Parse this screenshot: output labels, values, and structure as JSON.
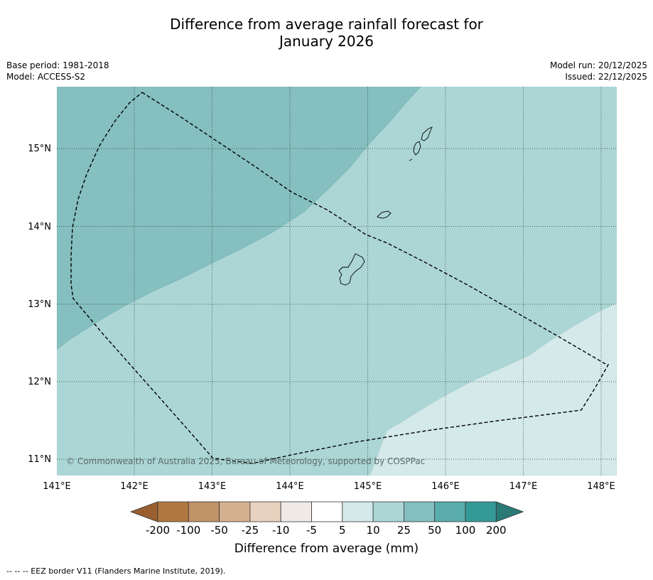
{
  "title": {
    "line1": "Difference from average rainfall forecast for",
    "line2": "January 2026"
  },
  "info": {
    "base_period": "Base period: 1981-2018",
    "model": "Model: ACCESS-S2",
    "model_run": "Model run: 20/12/2025",
    "issued": "Issued: 22/12/2025"
  },
  "map": {
    "lon_ticks": [
      "141°E",
      "142°E",
      "143°E",
      "144°E",
      "145°E",
      "146°E",
      "147°E",
      "148°E"
    ],
    "lat_ticks": [
      "15°N",
      "14°N",
      "13°N",
      "12°N",
      "11°N"
    ],
    "copyright": "© Commonwealth of Australia 2025, Bureau of Meteorology, supported by COSPPac",
    "colors": {
      "band_25_50": "#85bfbf",
      "band_10_25": "#acd6d6",
      "band_5_10": "#d4e9e9",
      "grid": "#333333",
      "eez": "#000000"
    }
  },
  "colorbar": {
    "labels": [
      "-200",
      "-100",
      "-50",
      "-25",
      "-10",
      "-5",
      "5",
      "10",
      "25",
      "50",
      "100",
      "200"
    ],
    "colors": [
      "#9a5f2e",
      "#b07840",
      "#c19168",
      "#d4b090",
      "#e8d2bf",
      "#f0ebe7",
      "#ffffff",
      "#d4e9e9",
      "#acd6d6",
      "#85bfbf",
      "#5aadac",
      "#349a98",
      "#2a7a77"
    ],
    "label": "Difference from average (mm)"
  },
  "footnote": "--  --  -- EEZ border V11 (Flanders Marine Institute, 2019)."
}
